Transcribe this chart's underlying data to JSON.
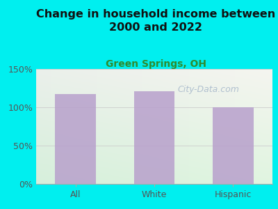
{
  "title": "Change in household income between\n2000 and 2022",
  "subtitle": "Green Springs, OH",
  "categories": [
    "All",
    "White",
    "Hispanic"
  ],
  "values": [
    117,
    121,
    100
  ],
  "bar_color": "#b8a0cc",
  "background_color": "#00efef",
  "plot_bg_topleft": "#d8ede0",
  "plot_bg_topright": "#e8e8e8",
  "plot_bg_bottomleft": "#d0ead8",
  "plot_bg_bottomright": "#e0e0e0",
  "title_fontsize": 11.5,
  "subtitle_fontsize": 10,
  "subtitle_color": "#2e8b2e",
  "tick_label_fontsize": 9,
  "axis_label_color": "#555555",
  "ylim": [
    0,
    150
  ],
  "yticks": [
    0,
    50,
    100,
    150
  ],
  "watermark": "City-Data.com",
  "watermark_color": "#aabbcc",
  "watermark_fontsize": 9
}
